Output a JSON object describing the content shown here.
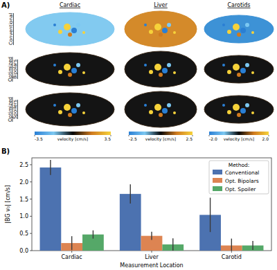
{
  "panel_a": {
    "label": "A)",
    "columns": [
      "Cardiac",
      "Liver",
      "Carotids"
    ],
    "rows": [
      "Conventional",
      "Optimized Bipolars",
      "Optimized Spoilers"
    ],
    "colorbars": [
      {
        "label": "velocity [cm/s]",
        "range": [
          -3.5,
          3.5
        ],
        "ticks": [
          -3.5,
          3.5
        ]
      },
      {
        "label": "velocity [cm/s]",
        "range": [
          -2.5,
          2.5
        ],
        "ticks": [
          -2.5,
          2.5
        ]
      },
      {
        "label": "velocity [cm/s]",
        "range": [
          -2.0,
          2.0
        ],
        "ticks": [
          {
            "value": -2.0,
            "label": "-2.0"
          },
          {
            "value": 2.0,
            "label": "2.0"
          }
        ]
      }
    ]
  },
  "panel_b": {
    "label": "B)"
  },
  "chart_data": {
    "type": "bar",
    "x_label": "Measurement Location",
    "y_label": "|BG v₀| [cm/s]",
    "categories": [
      "Cardiac",
      "Liver",
      "Carotid"
    ],
    "series": [
      {
        "name": "Conventional",
        "color": "#4c72b0",
        "values": [
          2.42,
          1.65,
          1.04
        ],
        "errors": [
          0.22,
          0.28,
          0.5
        ]
      },
      {
        "name": "Opt. Bipolars",
        "color": "#dd8452",
        "values": [
          0.22,
          0.43,
          0.15
        ],
        "errors": [
          0.2,
          0.12,
          0.2
        ]
      },
      {
        "name": "Opt. Spoiler",
        "color": "#55a868",
        "values": [
          0.47,
          0.18,
          0.15
        ],
        "errors": [
          0.12,
          0.18,
          0.13
        ]
      }
    ],
    "ylim": [
      0,
      2.7
    ],
    "yticks": [
      {
        "value": 0,
        "label": "0.0"
      },
      0.5,
      {
        "value": 1,
        "label": "1.0"
      },
      1.5,
      {
        "value": 2,
        "label": "2.0"
      },
      2.5
    ],
    "legend": "upper right",
    "legend_title": "Method:",
    "grid": false
  }
}
